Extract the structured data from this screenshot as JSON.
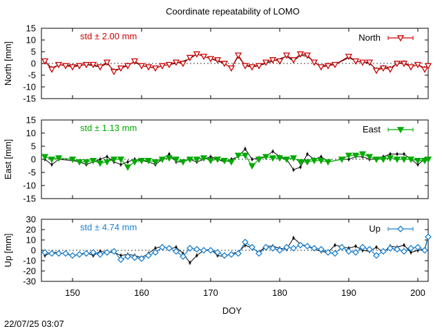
{
  "title": "Coordinate repeatability of LOMO",
  "xlabel": "DOY",
  "timestamp": "22/07/25 03:07",
  "x_ticks": [
    150,
    160,
    170,
    180,
    190,
    200
  ],
  "chart_data": [
    {
      "type": "scatter",
      "series_name": "North",
      "ylabel": "North [mm]",
      "std_label": "std ± 2.00 mm",
      "color": "#cc0000",
      "marker": "triangle-down-open",
      "xlim": [
        145.5,
        201.5
      ],
      "ylim": [
        -15,
        15
      ],
      "y_ticks": [
        -15,
        -10,
        -5,
        0,
        5,
        10,
        15
      ],
      "points": [
        [
          146,
          1
        ],
        [
          147,
          -2.5
        ],
        [
          148,
          -0.5
        ],
        [
          149,
          -1
        ],
        [
          150,
          -1.5
        ],
        [
          151,
          -1
        ],
        [
          152,
          -0.5
        ],
        [
          153,
          -0.5
        ],
        [
          154,
          -1.5
        ],
        [
          155,
          0.5
        ],
        [
          156,
          -3.5
        ],
        [
          157,
          -2
        ],
        [
          158,
          -1
        ],
        [
          159,
          1
        ],
        [
          160,
          -1
        ],
        [
          161,
          -1.5
        ],
        [
          162,
          -2
        ],
        [
          163,
          -1
        ],
        [
          164,
          -0.5
        ],
        [
          165,
          0.5
        ],
        [
          166,
          0
        ],
        [
          167,
          2.5
        ],
        [
          168,
          4
        ],
        [
          169,
          3
        ],
        [
          170,
          2
        ],
        [
          171,
          1.5
        ],
        [
          172,
          0
        ],
        [
          173,
          -2
        ],
        [
          174,
          3.5
        ],
        [
          175,
          -1
        ],
        [
          176,
          -1.5
        ],
        [
          177,
          -1
        ],
        [
          178,
          0.5
        ],
        [
          179,
          1.5
        ],
        [
          180,
          1
        ],
        [
          181,
          3.5
        ],
        [
          182,
          1.5
        ],
        [
          183,
          4
        ],
        [
          184,
          3.5
        ],
        [
          185,
          0.5
        ],
        [
          186,
          -1.5
        ],
        [
          187,
          -1
        ],
        [
          188,
          -0.5
        ],
        [
          190,
          3
        ],
        [
          191,
          1
        ],
        [
          192,
          0.5
        ],
        [
          193,
          0.5
        ],
        [
          194,
          -3
        ],
        [
          195,
          -2
        ],
        [
          196,
          -2.5
        ],
        [
          197,
          0
        ],
        [
          198,
          0
        ],
        [
          199,
          -1.5
        ],
        [
          200,
          -0.5
        ],
        [
          201,
          -2.5
        ],
        [
          201.5,
          -1
        ]
      ]
    },
    {
      "type": "scatter",
      "series_name": "East",
      "ylabel": "East [mm]",
      "std_label": "std ± 1.13 mm",
      "color": "#00aa00",
      "marker": "triangle-down-filled",
      "xlim": [
        145.5,
        201.5
      ],
      "ylim": [
        -15,
        15
      ],
      "y_ticks": [
        -15,
        -10,
        -5,
        0,
        5,
        10,
        15
      ],
      "points": [
        [
          146,
          1
        ],
        [
          147,
          0
        ],
        [
          148,
          0.5
        ],
        [
          150,
          0
        ],
        [
          151,
          -1
        ],
        [
          152,
          -1
        ],
        [
          153,
          -0.5
        ],
        [
          154,
          -1.5
        ],
        [
          155,
          -1
        ],
        [
          156,
          0
        ],
        [
          157,
          0
        ],
        [
          158,
          -3
        ],
        [
          159,
          -1
        ],
        [
          160,
          -0.5
        ],
        [
          161,
          -0.5
        ],
        [
          162,
          -1
        ],
        [
          163,
          0
        ],
        [
          164,
          0.5
        ],
        [
          165,
          0
        ],
        [
          166,
          -1
        ],
        [
          167,
          0
        ],
        [
          168,
          0
        ],
        [
          169,
          0.5
        ],
        [
          170,
          -0.5
        ],
        [
          171,
          0
        ],
        [
          172,
          -0.5
        ],
        [
          173,
          -1
        ],
        [
          174,
          1.5
        ],
        [
          175,
          1.5
        ],
        [
          176,
          -2.5
        ],
        [
          177,
          0
        ],
        [
          178,
          1
        ],
        [
          179,
          0.5
        ],
        [
          180,
          0.5
        ],
        [
          181,
          0
        ],
        [
          182,
          0.5
        ],
        [
          183,
          -1
        ],
        [
          184,
          -1
        ],
        [
          185,
          -0.5
        ],
        [
          186,
          -0.5
        ],
        [
          187,
          -1
        ],
        [
          189,
          0
        ],
        [
          190,
          1.5
        ],
        [
          191,
          1.5
        ],
        [
          192,
          2
        ],
        [
          193,
          1
        ],
        [
          194,
          0
        ],
        [
          195,
          0
        ],
        [
          196,
          0.5
        ],
        [
          197,
          0
        ],
        [
          198,
          0
        ],
        [
          199,
          0
        ],
        [
          200,
          -0.5
        ],
        [
          201,
          -0.5
        ],
        [
          201.5,
          0
        ]
      ]
    },
    {
      "type": "scatter",
      "series_name": "Up",
      "ylabel": "Up [mm]",
      "std_label": "std ± 4.74 mm",
      "color": "#1a80d0",
      "marker": "diamond-open",
      "xlim": [
        145.5,
        201.5
      ],
      "ylim": [
        -30,
        30
      ],
      "y_ticks": [
        -30,
        -20,
        -10,
        0,
        10,
        20,
        30
      ],
      "points": [
        [
          146,
          -2
        ],
        [
          147,
          -3
        ],
        [
          148,
          -3
        ],
        [
          149,
          -3
        ],
        [
          150,
          -5
        ],
        [
          151,
          -4
        ],
        [
          152,
          -3
        ],
        [
          153,
          -2
        ],
        [
          154,
          -4
        ],
        [
          155,
          -2
        ],
        [
          156,
          -1
        ],
        [
          157,
          -9
        ],
        [
          158,
          -6
        ],
        [
          159,
          -7
        ],
        [
          160,
          -8
        ],
        [
          161,
          -5
        ],
        [
          162,
          -2
        ],
        [
          163,
          3
        ],
        [
          164,
          2
        ],
        [
          165,
          -1
        ],
        [
          166,
          -6
        ],
        [
          167,
          2
        ],
        [
          168,
          1
        ],
        [
          169,
          0
        ],
        [
          170,
          0
        ],
        [
          171,
          -2
        ],
        [
          172,
          -5
        ],
        [
          173,
          -4
        ],
        [
          174,
          -3
        ],
        [
          175,
          8
        ],
        [
          176,
          3
        ],
        [
          177,
          -3
        ],
        [
          178,
          3
        ],
        [
          179,
          2
        ],
        [
          180,
          0
        ],
        [
          181,
          3
        ],
        [
          182,
          2
        ],
        [
          183,
          5
        ],
        [
          184,
          4
        ],
        [
          185,
          2
        ],
        [
          186,
          1
        ],
        [
          187,
          -2
        ],
        [
          188,
          -3
        ],
        [
          189,
          3
        ],
        [
          190,
          -1
        ],
        [
          191,
          -2
        ],
        [
          192,
          3
        ],
        [
          193,
          1
        ],
        [
          194,
          -5
        ],
        [
          195,
          -1
        ],
        [
          196,
          2
        ],
        [
          197,
          1
        ],
        [
          198,
          -1
        ],
        [
          199,
          2
        ],
        [
          200,
          3
        ],
        [
          201,
          0
        ],
        [
          201.5,
          13
        ]
      ]
    },
    {
      "type": "line",
      "series_name": "",
      "color": "#000000",
      "note": "black reference solution overlaid on each panel",
      "north": [
        [
          146,
          1
        ],
        [
          147,
          -2
        ],
        [
          148,
          -0.5
        ],
        [
          150,
          -1
        ],
        [
          152,
          -0.5
        ],
        [
          153,
          -1
        ],
        [
          154,
          -1.5
        ],
        [
          155,
          0
        ],
        [
          156,
          -3
        ],
        [
          157,
          -2
        ],
        [
          158,
          -0.5
        ],
        [
          159,
          0.5
        ],
        [
          160,
          -1
        ],
        [
          162,
          -2
        ],
        [
          163,
          -1
        ],
        [
          165,
          0
        ],
        [
          167,
          2
        ],
        [
          168,
          4
        ],
        [
          170,
          2
        ],
        [
          172,
          0
        ],
        [
          173,
          -2
        ],
        [
          174,
          3
        ],
        [
          175,
          -1
        ],
        [
          177,
          -1
        ],
        [
          178,
          0
        ],
        [
          179,
          1
        ],
        [
          181,
          3
        ],
        [
          182,
          1
        ],
        [
          183,
          3.5
        ],
        [
          184,
          3
        ],
        [
          186,
          -1.5
        ],
        [
          187,
          -0.5
        ],
        [
          188,
          -0.5
        ],
        [
          190,
          2.5
        ],
        [
          191,
          1
        ],
        [
          193,
          0
        ],
        [
          194,
          -2.5
        ],
        [
          195,
          -1.5
        ],
        [
          196,
          -2
        ],
        [
          197,
          0
        ],
        [
          198,
          0.5
        ],
        [
          199,
          -1.5
        ],
        [
          200,
          -0.5
        ],
        [
          201,
          -2
        ],
        [
          201.5,
          -1
        ]
      ],
      "east": [
        [
          146,
          0
        ],
        [
          147,
          -2
        ],
        [
          148,
          0
        ],
        [
          150,
          -0.5
        ],
        [
          151,
          -1
        ],
        [
          152,
          -2
        ],
        [
          153,
          -1
        ],
        [
          154,
          0
        ],
        [
          155,
          1
        ],
        [
          156,
          -1
        ],
        [
          157,
          -2
        ],
        [
          158,
          -1
        ],
        [
          159,
          0
        ],
        [
          160,
          -0.5
        ],
        [
          161,
          -1
        ],
        [
          162,
          -2
        ],
        [
          163,
          0
        ],
        [
          164,
          2
        ],
        [
          165,
          -1
        ],
        [
          166,
          -1
        ],
        [
          167,
          0
        ],
        [
          168,
          -1
        ],
        [
          169,
          0
        ],
        [
          170,
          1
        ],
        [
          171,
          0
        ],
        [
          172,
          -1
        ],
        [
          173,
          0
        ],
        [
          174,
          1
        ],
        [
          175,
          4
        ],
        [
          176,
          0
        ],
        [
          177,
          0.5
        ],
        [
          178,
          1
        ],
        [
          179,
          3
        ],
        [
          180,
          1
        ],
        [
          181,
          0
        ],
        [
          182,
          -4
        ],
        [
          183,
          -3
        ],
        [
          184,
          2
        ],
        [
          185,
          0
        ],
        [
          186,
          1
        ],
        [
          187,
          -1
        ],
        [
          189,
          0
        ],
        [
          190,
          0
        ],
        [
          191,
          1
        ],
        [
          192,
          1
        ],
        [
          193,
          0
        ],
        [
          194,
          0
        ],
        [
          195,
          1
        ],
        [
          196,
          2
        ],
        [
          197,
          2
        ],
        [
          198,
          2
        ],
        [
          199,
          0
        ],
        [
          200,
          -2
        ],
        [
          201,
          0
        ],
        [
          201.5,
          0
        ]
      ],
      "up": [
        [
          146,
          -5
        ],
        [
          147,
          -2
        ],
        [
          148,
          -2
        ],
        [
          150,
          -5
        ],
        [
          151,
          -4
        ],
        [
          152,
          -2
        ],
        [
          153,
          -5
        ],
        [
          154,
          -1
        ],
        [
          155,
          -2
        ],
        [
          156,
          -2
        ],
        [
          157,
          -5
        ],
        [
          158,
          -4
        ],
        [
          159,
          -5
        ],
        [
          160,
          -7
        ],
        [
          161,
          -3
        ],
        [
          162,
          2
        ],
        [
          163,
          4
        ],
        [
          164,
          1
        ],
        [
          165,
          3
        ],
        [
          166,
          -3
        ],
        [
          167,
          -12
        ],
        [
          168,
          -5
        ],
        [
          169,
          0
        ],
        [
          170,
          1
        ],
        [
          171,
          -5
        ],
        [
          172,
          -6
        ],
        [
          173,
          -3
        ],
        [
          174,
          -2
        ],
        [
          175,
          5
        ],
        [
          176,
          2
        ],
        [
          177,
          -2
        ],
        [
          178,
          4
        ],
        [
          179,
          4
        ],
        [
          180,
          2
        ],
        [
          181,
          1
        ],
        [
          182,
          12
        ],
        [
          183,
          6
        ],
        [
          184,
          4
        ],
        [
          185,
          1
        ],
        [
          186,
          -1
        ],
        [
          187,
          -2
        ],
        [
          188,
          5
        ],
        [
          190,
          2
        ],
        [
          191,
          4
        ],
        [
          192,
          0
        ],
        [
          193,
          -1
        ],
        [
          194,
          3
        ],
        [
          195,
          -2
        ],
        [
          196,
          4
        ],
        [
          197,
          3
        ],
        [
          198,
          5
        ],
        [
          199,
          -2
        ],
        [
          200,
          0
        ],
        [
          201,
          1
        ],
        [
          201.5,
          14
        ]
      ]
    }
  ]
}
